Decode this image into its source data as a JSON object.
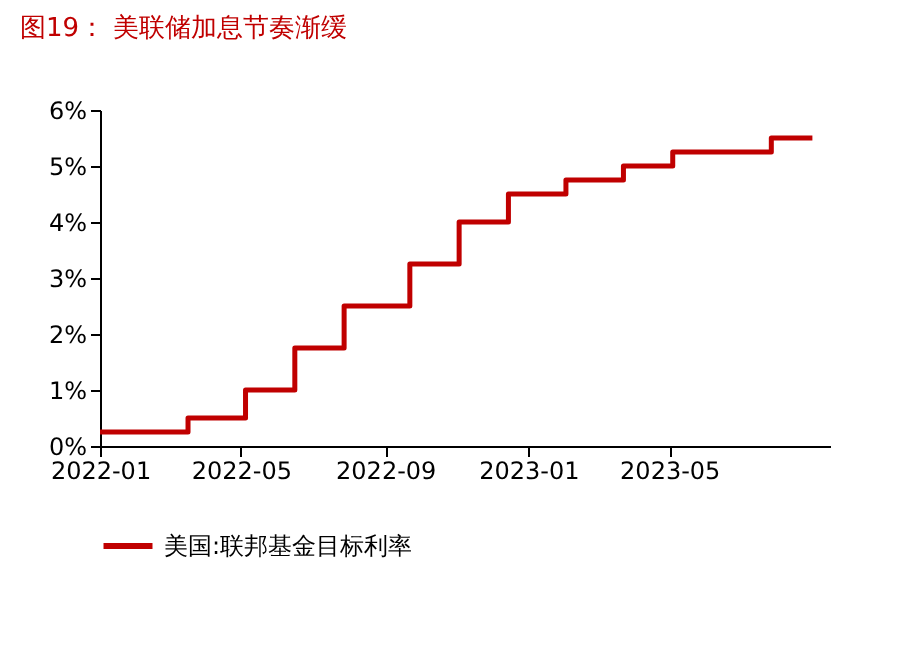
{
  "chart_data": {
    "type": "step",
    "title": "图19：  美联储加息节奏渐缓",
    "x": [
      "2022-01-01",
      "2022-03-17",
      "2022-05-05",
      "2022-06-16",
      "2022-07-28",
      "2022-09-22",
      "2022-11-03",
      "2022-12-15",
      "2023-02-02",
      "2023-03-23",
      "2023-05-04",
      "2023-07-27",
      "2023-08-31"
    ],
    "series": [
      {
        "name": "美国:联邦基金目标利率",
        "color": "#c00000",
        "values": [
          0.25,
          0.5,
          1.0,
          1.75,
          2.5,
          3.25,
          4.0,
          4.5,
          4.75,
          5.0,
          5.25,
          5.5,
          5.5
        ]
      }
    ],
    "xlim": [
      "2022-01-01",
      "2023-09-15"
    ],
    "xticks": [
      {
        "value": "2022-01",
        "label": "2022-01"
      },
      {
        "value": "2022-05",
        "label": "2022-05"
      },
      {
        "value": "2022-09",
        "label": "2022-09"
      },
      {
        "value": "2023-01",
        "label": "2023-01"
      },
      {
        "value": "2023-05",
        "label": "2023-05"
      }
    ],
    "ylim": [
      0,
      6
    ],
    "yticks": [
      {
        "value": 0,
        "label": "0%"
      },
      {
        "value": 1,
        "label": "1%"
      },
      {
        "value": 2,
        "label": "2%"
      },
      {
        "value": 3,
        "label": "3%"
      },
      {
        "value": 4,
        "label": "4%"
      },
      {
        "value": 5,
        "label": "5%"
      },
      {
        "value": 6,
        "label": "6%"
      }
    ],
    "grid": false,
    "legend": "bottom",
    "line_style": "solid",
    "marker": "none"
  }
}
